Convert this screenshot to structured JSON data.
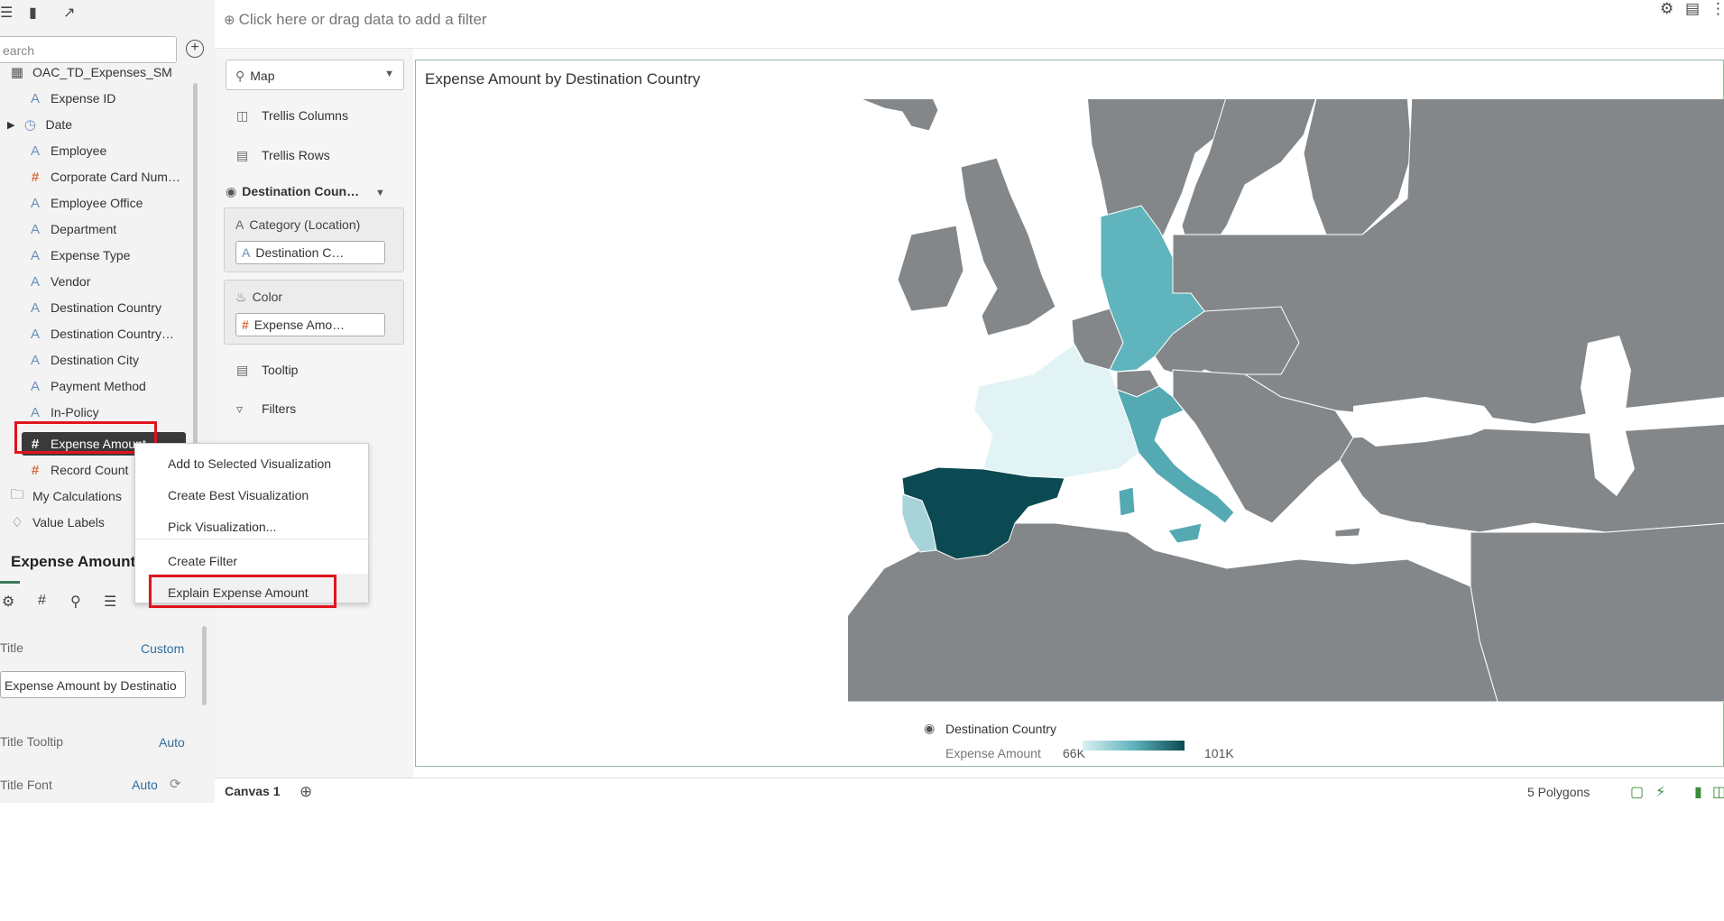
{
  "toolbar": {
    "icons": [
      "database-icon",
      "visualizations-icon",
      "analytics-icon"
    ]
  },
  "data_panel": {
    "search_placeholder": "Search",
    "search_visible_text": "earch",
    "dataset_name": "OAC_TD_Expenses_SM",
    "columns": [
      {
        "label": "Expense ID",
        "type": "attribute"
      },
      {
        "label": "Date",
        "type": "time"
      },
      {
        "label": "Employee",
        "type": "attribute"
      },
      {
        "label": "Corporate Card Num…",
        "type": "measure"
      },
      {
        "label": "Employee Office",
        "type": "attribute"
      },
      {
        "label": "Department",
        "type": "attribute"
      },
      {
        "label": "Expense Type",
        "type": "attribute"
      },
      {
        "label": "Vendor",
        "type": "attribute"
      },
      {
        "label": "Destination Country",
        "type": "attribute"
      },
      {
        "label": "Destination Country…",
        "type": "attribute"
      },
      {
        "label": "Destination City",
        "type": "attribute"
      },
      {
        "label": "Payment Method",
        "type": "attribute"
      },
      {
        "label": "In-Policy",
        "type": "attribute"
      },
      {
        "label": "Expense Amount",
        "type": "measure",
        "selected": true
      },
      {
        "label": "Record Count",
        "type": "measure"
      }
    ],
    "folders": [
      {
        "label": "My Calculations"
      },
      {
        "label": "Value Labels"
      }
    ]
  },
  "properties": {
    "header": "Expense Amount",
    "tabs": [
      "gear-icon",
      "hash-icon",
      "location-icon",
      "layers-icon"
    ],
    "title_label": "Title",
    "title_mode": "Custom",
    "title_value": "Expense Amount by Destinatio",
    "title_tooltip_label": "Title Tooltip",
    "title_tooltip_value": "Auto",
    "title_font_label": "Title Font",
    "title_font_value": "Auto"
  },
  "grammar": {
    "viz_type": "Map",
    "trellis_columns": "Trellis Columns",
    "trellis_rows": "Trellis Rows",
    "layer_header": "Destination Coun…",
    "category_label": "Category (Location)",
    "category_value": "Destination C…",
    "color_label": "Color",
    "color_value": "Expense Amo…",
    "tooltip": "Tooltip",
    "filters": "Filters"
  },
  "filter_bar": {
    "text": "Click here or drag data to add a filter"
  },
  "visualization": {
    "title": "Expense Amount by Destination Country",
    "legend_layer": "Destination Country",
    "legend_measure": "Expense Amount",
    "legend_min": "66K",
    "legend_max": "101K",
    "colors": {
      "land": "#84878a",
      "spain": "#0b4a52",
      "germany": "#5fb4bd",
      "italy": "#54a9b2",
      "portugal": "#a6d4d8",
      "france": "#e1f3f5"
    }
  },
  "context_menu": {
    "items": [
      "Add to Selected Visualization",
      "Create Best Visualization",
      "Pick Visualization...",
      "Create Filter",
      "Explain Expense Amount"
    ]
  },
  "status_bar": {
    "canvas_tab": "Canvas 1",
    "polygons": "5 Polygons"
  }
}
